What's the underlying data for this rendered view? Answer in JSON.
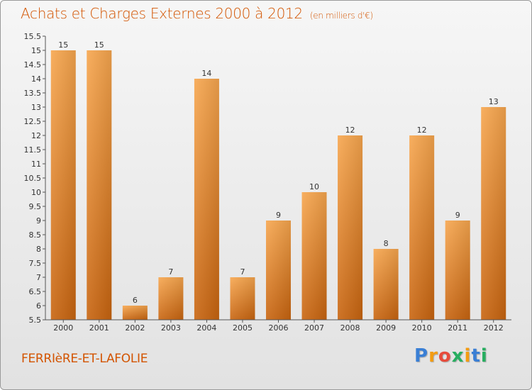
{
  "header": {
    "title": "Achats et Charges Externes 2000 à 2012",
    "subtitle": "(en milliers d'€)"
  },
  "footer": {
    "commune": "FERRIèRE-ET-LAFOLIE",
    "logo_text": "Proxiti",
    "logo_colors": [
      "#3a7fd5",
      "#f39c12",
      "#e74c3c",
      "#27ae60",
      "#f39c12",
      "#3a7fd5",
      "#27ae60"
    ]
  },
  "colors": {
    "bar_top": "#f7a64e",
    "bar_bottom": "#c8640f",
    "accent": "#d35400",
    "axis": "#555555"
  },
  "chart_data": {
    "type": "bar",
    "categories": [
      "2000",
      "2001",
      "2002",
      "2003",
      "2004",
      "2005",
      "2006",
      "2007",
      "2008",
      "2009",
      "2010",
      "2011",
      "2012"
    ],
    "values": [
      15,
      15,
      6,
      7,
      14,
      7,
      9,
      10,
      12,
      8,
      12,
      9,
      13
    ],
    "data_labels": [
      "15",
      "15",
      "6",
      "7",
      "14",
      "7",
      "9",
      "10",
      "12",
      "8",
      "12",
      "9",
      "13"
    ],
    "yticks": [
      "5.5",
      "6",
      "6.5",
      "7",
      "7.5",
      "8",
      "8.5",
      "9",
      "9.5",
      "10",
      "10.5",
      "11",
      "11.5",
      "12",
      "12.5",
      "13",
      "13.5",
      "14",
      "14.5",
      "15",
      "15.5"
    ],
    "title": "Achats et Charges Externes 2000 à 2012",
    "xlabel": "",
    "ylabel": "",
    "ylim": [
      5.5,
      15.5
    ],
    "grid": false,
    "legend": "none"
  }
}
